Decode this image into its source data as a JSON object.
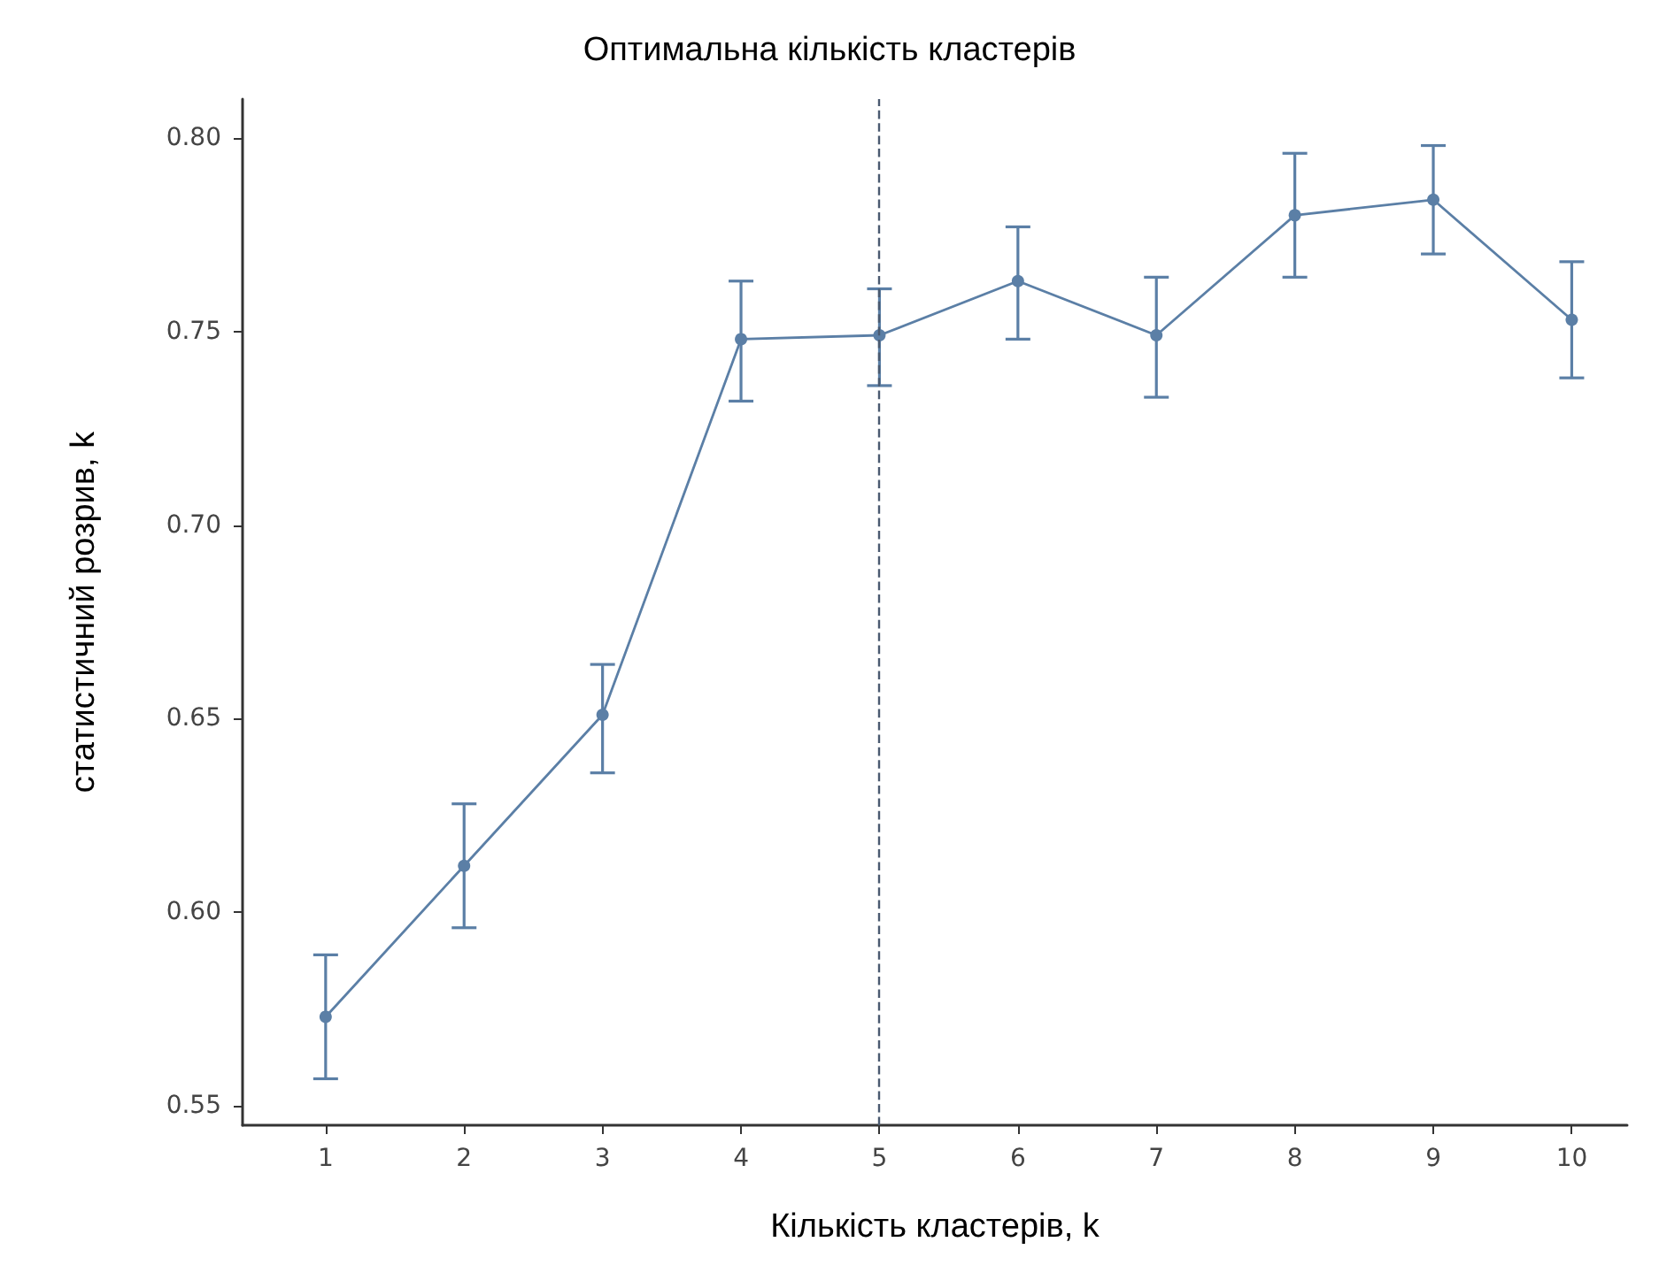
{
  "chart_data": {
    "type": "line",
    "title": "Оптимальна кількість кластерів",
    "xlabel": "Кількість кластерів, k",
    "ylabel": "статистичний розрив, k",
    "x": [
      1,
      2,
      3,
      4,
      5,
      6,
      7,
      8,
      9,
      10
    ],
    "series": [
      {
        "color": "#5b7fa6",
        "values": [
          0.573,
          0.612,
          0.651,
          0.748,
          0.749,
          0.763,
          0.749,
          0.78,
          0.784,
          0.753
        ],
        "errors": [
          [
            0.557,
            0.589
          ],
          [
            0.596,
            0.628
          ],
          [
            0.636,
            0.664
          ],
          [
            0.732,
            0.763
          ],
          [
            0.736,
            0.761
          ],
          [
            0.748,
            0.777
          ],
          [
            0.733,
            0.764
          ],
          [
            0.764,
            0.796
          ],
          [
            0.77,
            0.798
          ],
          [
            0.738,
            0.768
          ]
        ]
      }
    ],
    "xlim": [
      0.4,
      10.4
    ],
    "xticks": [
      1,
      2,
      3,
      4,
      5,
      6,
      7,
      8,
      9,
      10
    ],
    "ylim": [
      0.545,
      0.81
    ],
    "yticks": [
      0.55,
      {
        "value": 0.6,
        "label": "0.60"
      },
      0.65,
      {
        "value": 0.7,
        "label": "0.70"
      },
      0.75,
      {
        "value": 0.8,
        "label": "0.80"
      }
    ],
    "ref_lines": [
      {
        "axis": "x",
        "value": 5,
        "line_style": "dashed",
        "color": "#4a5a70"
      }
    ],
    "grid": false,
    "marker": "circle",
    "line_style": "solid"
  }
}
